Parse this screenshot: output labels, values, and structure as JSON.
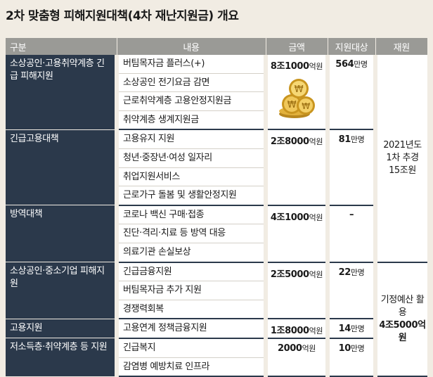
{
  "title": "2차 맞춤형 피해지원대책(4차 재난지원금) 개요",
  "headers": [
    "구분",
    "내용",
    "금액",
    "지원대상",
    "재원"
  ],
  "groups": [
    {
      "category": "소상공인·고용취약계층 긴급 피해지원",
      "amount": "8조1000",
      "amount_unit": "억원",
      "target": "564",
      "target_unit": "만명",
      "items": [
        "버팀목자금 플러스(+)",
        "소상공인 전기요금 감면",
        "근로취약계층 고용안정지원금",
        "취약계층 생계지원금"
      ]
    },
    {
      "category": "긴급고용대책",
      "amount": "2조8000",
      "amount_unit": "억원",
      "target": "81",
      "target_unit": "만명",
      "items": [
        "고용유지 지원",
        "청년·중장년·여성 일자리",
        "취업지원서비스",
        "근로가구 돌봄 및 생활안정지원"
      ]
    },
    {
      "category": "방역대책",
      "amount": "4조1000",
      "amount_unit": "억원",
      "target": "–",
      "target_unit": "",
      "items": [
        "코로나 백신 구매·접종",
        "진단·격리·치료 등 방역 대응",
        "의료기관 손실보상"
      ]
    },
    {
      "category": "소상공인·중소기업 피해지원",
      "amount": "2조5000",
      "amount_unit": "억원",
      "target": "22",
      "target_unit": "만명",
      "items": [
        "긴급금융지원",
        "버팀목자금 추가 지원",
        "경쟁력회복"
      ]
    },
    {
      "category": "고용지원",
      "amount": "1조8000",
      "amount_unit": "억원",
      "target": "14",
      "target_unit": "만명",
      "items": [
        "고용연계 정책금융지원"
      ]
    },
    {
      "category": "저소득층·취약계층 등 지원",
      "amount": "2000",
      "amount_unit": "억원",
      "target": "10",
      "target_unit": "만명",
      "items": [
        "긴급복지",
        "감염병 예방치료 인프라"
      ]
    }
  ],
  "sources": [
    {
      "line1": "2021년도",
      "line2": "1차 추경",
      "line3": "15조원"
    },
    {
      "line1": "기정예산 활용",
      "line2": "4조5000억원"
    }
  ]
}
